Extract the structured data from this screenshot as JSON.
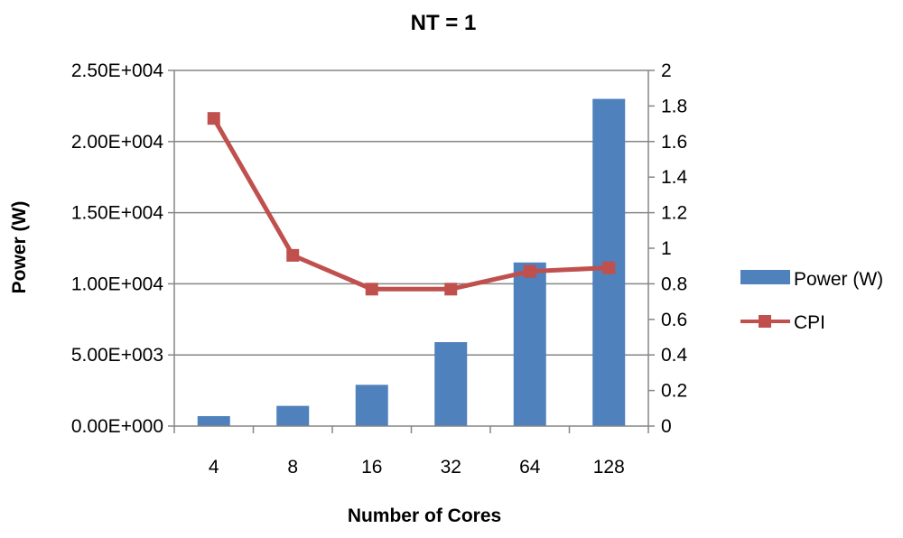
{
  "chart_data": {
    "type": "bar+line",
    "title": "NT = 1",
    "xlabel": "Number of Cores",
    "ylabel": "Power (W)",
    "categories": [
      "4",
      "8",
      "16",
      "32",
      "64",
      "128"
    ],
    "y_left": {
      "lim": [
        0,
        25000
      ],
      "ticks": [
        0,
        5000,
        10000,
        15000,
        20000,
        25000
      ],
      "tick_labels": [
        "0.00E+000",
        "5.00E+003",
        "1.00E+004",
        "1.50E+004",
        "2.00E+004",
        "2.50E+004"
      ]
    },
    "y_right": {
      "lim": [
        0,
        2
      ],
      "ticks": [
        0,
        0.2,
        0.4,
        0.6,
        0.8,
        1,
        1.2,
        1.4,
        1.6,
        1.8,
        2
      ],
      "tick_labels": [
        "0",
        "0.2",
        "0.4",
        "0.6",
        "0.8",
        "1",
        "1.2",
        "1.4",
        "1.6",
        "1.8",
        "2"
      ]
    },
    "grid": true,
    "legend_position": "right",
    "series": [
      {
        "name": "Power (W)",
        "type": "bar",
        "axis": "left",
        "color": "#4f81bd",
        "values": [
          700,
          1420,
          2900,
          5900,
          11500,
          23000
        ]
      },
      {
        "name": "CPI",
        "type": "line",
        "axis": "right",
        "color": "#c0504d",
        "marker": "square",
        "values": [
          1.73,
          0.96,
          0.77,
          0.77,
          0.87,
          0.89
        ]
      }
    ]
  }
}
